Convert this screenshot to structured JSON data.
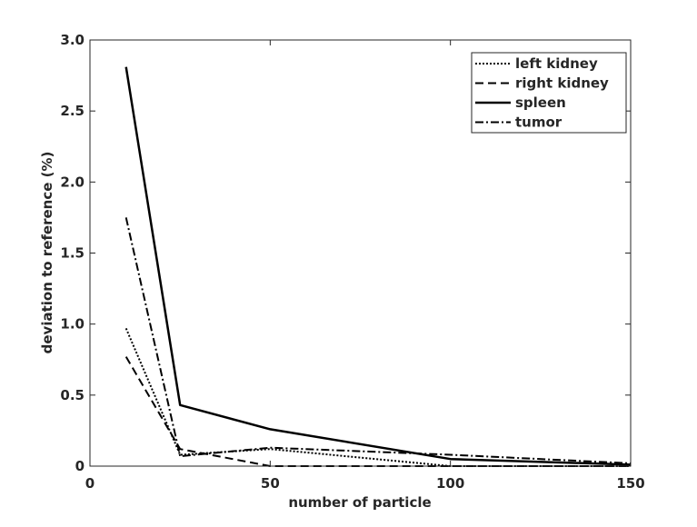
{
  "chart_data": {
    "type": "line",
    "title": "",
    "xlabel": "number of particle",
    "ylabel": "deviation to reference (%)",
    "xlim": [
      0,
      150
    ],
    "ylim": [
      0,
      3.0
    ],
    "xticks": [
      0,
      50,
      100,
      150
    ],
    "xtick_labels": [
      "0",
      "50",
      "100",
      "150"
    ],
    "yticks": [
      0,
      0.5,
      1.0,
      1.5,
      2.0,
      2.5,
      3.0
    ],
    "ytick_labels": [
      "0",
      "0.5",
      "1.0",
      "1.5",
      "2.0",
      "2.5",
      "3.0"
    ],
    "grid": false,
    "legend_position": "top-right",
    "series": [
      {
        "name": "left kidney",
        "style": "dotted",
        "x": [
          10,
          25,
          50,
          100,
          150
        ],
        "y": [
          0.97,
          0.08,
          0.12,
          0.0,
          0.0
        ]
      },
      {
        "name": "right kidney",
        "style": "dashed",
        "x": [
          10,
          25,
          50,
          100,
          150
        ],
        "y": [
          0.77,
          0.12,
          0.0,
          0.0,
          0.0
        ]
      },
      {
        "name": "spleen",
        "style": "solid",
        "x": [
          10,
          25,
          50,
          100,
          150
        ],
        "y": [
          2.81,
          0.43,
          0.26,
          0.05,
          0.01
        ]
      },
      {
        "name": "tumor",
        "style": "dashdot",
        "x": [
          10,
          25,
          50,
          100,
          150
        ],
        "y": [
          1.75,
          0.07,
          0.13,
          0.08,
          0.02
        ]
      }
    ]
  }
}
